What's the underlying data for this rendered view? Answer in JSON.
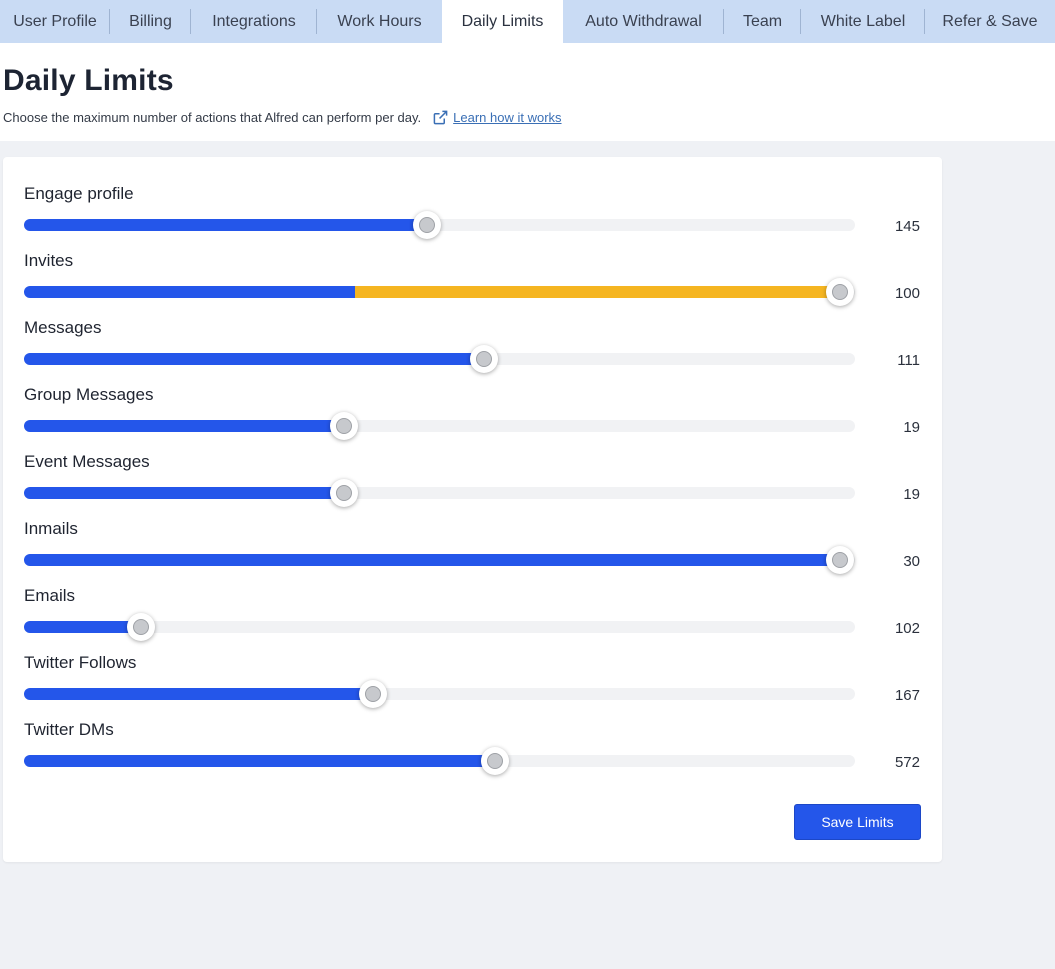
{
  "tabs": [
    {
      "label": "User Profile",
      "active": false
    },
    {
      "label": "Billing",
      "active": false
    },
    {
      "label": "Integrations",
      "active": false
    },
    {
      "label": "Work Hours",
      "active": false
    },
    {
      "label": "Daily Limits",
      "active": true
    },
    {
      "label": "Auto Withdrawal",
      "active": false
    },
    {
      "label": "Team",
      "active": false
    },
    {
      "label": "White Label",
      "active": false
    },
    {
      "label": "Refer & Save",
      "active": false
    }
  ],
  "header": {
    "title": "Daily Limits",
    "subtitle": "Choose the maximum number of actions that Alfred can perform per day.",
    "learn_link": "Learn how it works",
    "learn_icon": "external-link-icon"
  },
  "limits": [
    {
      "label": "Engage profile",
      "value": "145",
      "fill_fraction": 0.485
    },
    {
      "label": "Invites",
      "value": "100",
      "fill_fraction": 0.982,
      "base_fraction": 0.398,
      "over_color": "#f5b521"
    },
    {
      "label": "Messages",
      "value": "111",
      "fill_fraction": 0.553
    },
    {
      "label": "Group Messages",
      "value": "19",
      "fill_fraction": 0.385
    },
    {
      "label": "Event Messages",
      "value": "19",
      "fill_fraction": 0.385
    },
    {
      "label": "Inmails",
      "value": "30",
      "fill_fraction": 0.982
    },
    {
      "label": "Emails",
      "value": "102",
      "fill_fraction": 0.141
    },
    {
      "label": "Twitter Follows",
      "value": "167",
      "fill_fraction": 0.42
    },
    {
      "label": "Twitter DMs",
      "value": "572",
      "fill_fraction": 0.567
    }
  ],
  "save_button_label": "Save Limits",
  "colors": {
    "accent": "#2456ea",
    "warning": "#f5b521",
    "tab_bar": "#c9dbf4",
    "link": "#3a6fb5"
  }
}
